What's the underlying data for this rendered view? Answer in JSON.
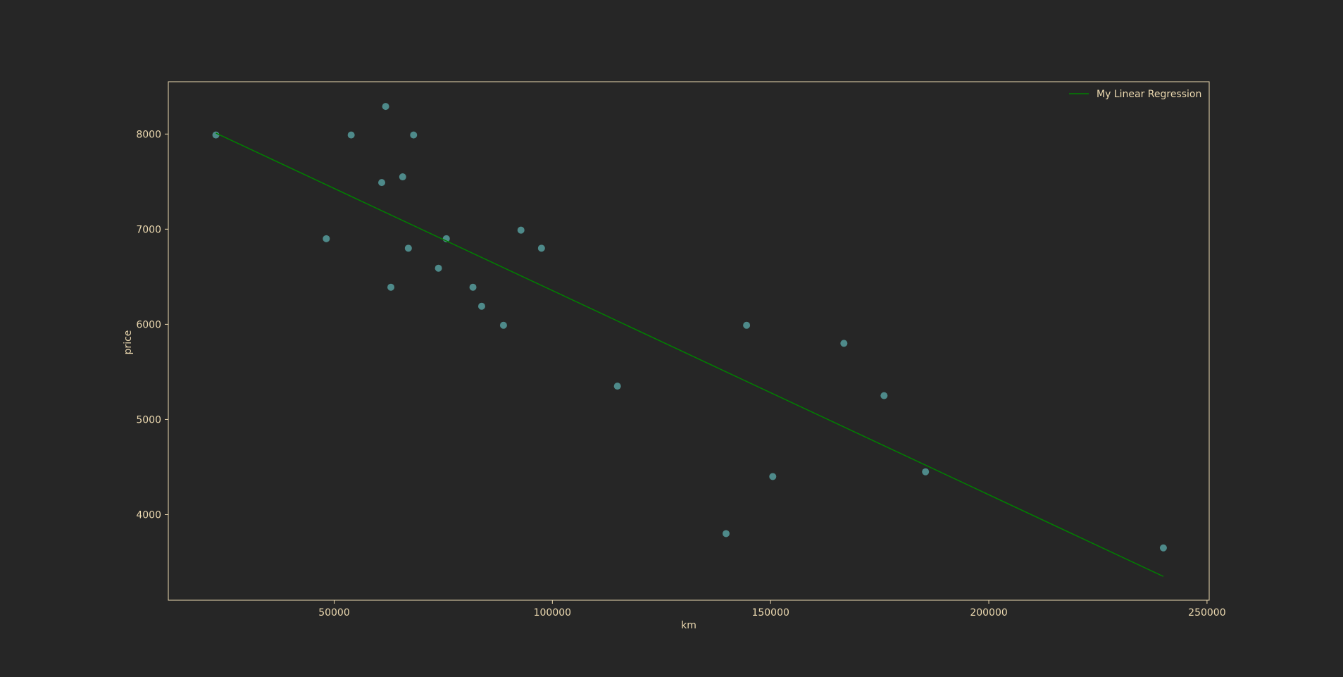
{
  "colors": {
    "background": "#262626",
    "axes_edge": "#ecd9b0",
    "text": "#ecd9b0",
    "points": "#4e8a8a",
    "regression_line": "#008000"
  },
  "chart_data": {
    "type": "scatter",
    "title": "",
    "xlabel": "km",
    "ylabel": "price",
    "xlim": [
      12000,
      250500
    ],
    "ylim": [
      3100,
      8550
    ],
    "x_ticks": [
      50000,
      100000,
      150000,
      200000,
      250000
    ],
    "x_tick_labels": [
      "50000",
      "100000",
      "150000",
      "200000",
      "250000"
    ],
    "y_ticks": [
      4000,
      5000,
      6000,
      7000,
      8000
    ],
    "y_tick_labels": [
      "4000",
      "5000",
      "6000",
      "7000",
      "8000"
    ],
    "grid": false,
    "legend_position": "top-right",
    "series": [
      {
        "type": "scatter",
        "points": [
          [
            22900,
            7990
          ],
          [
            48200,
            6900
          ],
          [
            53900,
            7990
          ],
          [
            60900,
            7490
          ],
          [
            61800,
            8290
          ],
          [
            63000,
            6390
          ],
          [
            65700,
            7550
          ],
          [
            67000,
            6800
          ],
          [
            68200,
            7990
          ],
          [
            73900,
            6590
          ],
          [
            75700,
            6900
          ],
          [
            81800,
            6390
          ],
          [
            83800,
            6190
          ],
          [
            88800,
            5990
          ],
          [
            92800,
            6990
          ],
          [
            97500,
            6800
          ],
          [
            114900,
            5350
          ],
          [
            139800,
            3800
          ],
          [
            144500,
            5990
          ],
          [
            150500,
            4400
          ],
          [
            166800,
            5800
          ],
          [
            176000,
            5250
          ],
          [
            185500,
            4450
          ],
          [
            240000,
            3650
          ]
        ]
      },
      {
        "type": "line",
        "name": "My Linear Regression",
        "points": [
          [
            22900,
            8010
          ],
          [
            240000,
            3350
          ]
        ]
      }
    ]
  }
}
